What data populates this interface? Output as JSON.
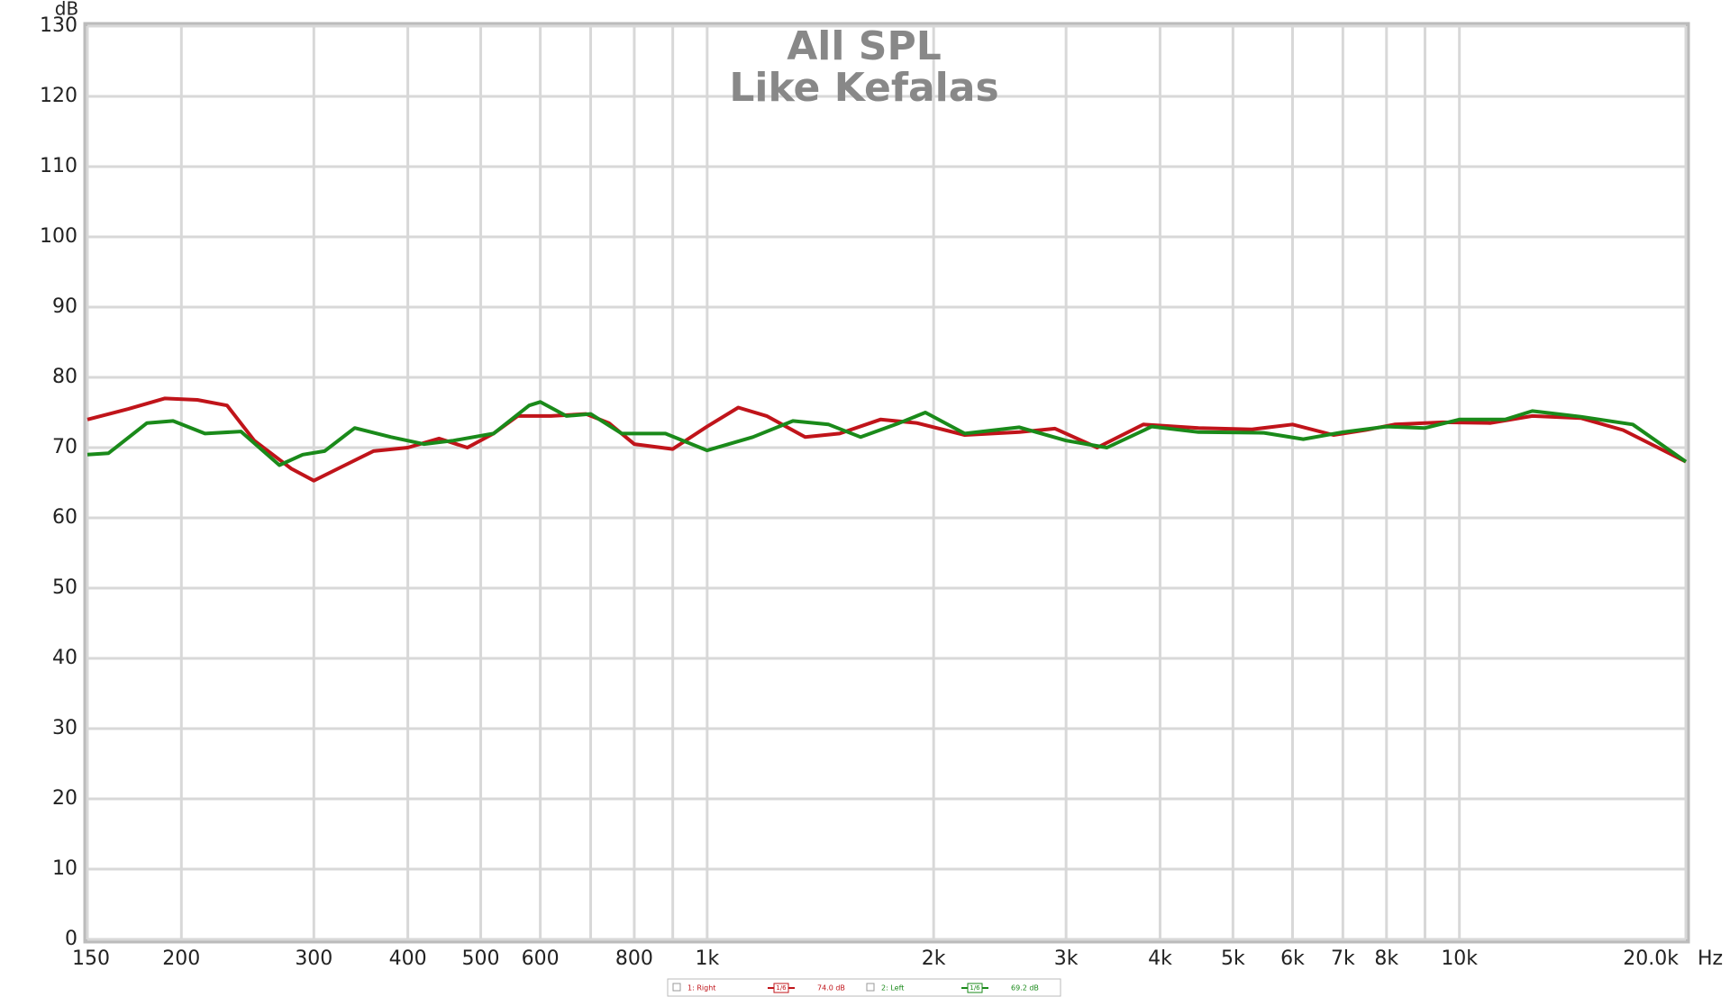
{
  "chart_data": {
    "type": "line",
    "title": "All SPL",
    "subtitle": "Like Kefalas",
    "y_label": "dB",
    "x_label": "Hz",
    "xscale": "log",
    "grid": true,
    "xlim": [
      150,
      20000
    ],
    "ylim": [
      0,
      130
    ],
    "yticks": [
      0,
      10,
      20,
      30,
      40,
      50,
      60,
      70,
      80,
      90,
      100,
      110,
      120,
      130
    ],
    "xticks": [
      150,
      200,
      300,
      400,
      500,
      600,
      800,
      {
        "value": 1000,
        "label": "1k"
      },
      {
        "value": 2000,
        "label": "2k"
      },
      {
        "value": 3000,
        "label": "3k"
      },
      {
        "value": 4000,
        "label": "4k"
      },
      {
        "value": 5000,
        "label": "5k"
      },
      {
        "value": 6000,
        "label": "6k"
      },
      {
        "value": 7000,
        "label": "7k"
      },
      {
        "value": 8000,
        "label": "8k"
      },
      {
        "value": 10000,
        "label": "10k"
      },
      {
        "value": 20000,
        "label": "20.0k"
      }
    ],
    "xgrid_minor": [
      700,
      900,
      9000
    ],
    "series": [
      {
        "name": "1: Right",
        "color": "#c0141a",
        "smoothing": "1/6",
        "level_label": "74.0 dB",
        "x": [
          150,
          170,
          190,
          210,
          230,
          250,
          280,
          300,
          330,
          360,
          400,
          440,
          480,
          520,
          560,
          620,
          690,
          740,
          800,
          900,
          1000,
          1100,
          1200,
          1350,
          1500,
          1700,
          1900,
          2200,
          2600,
          2900,
          3300,
          3800,
          4500,
          5300,
          6000,
          6800,
          7500,
          8200,
          9500,
          11000,
          12500,
          14500,
          16500,
          20000
        ],
        "values": [
          74,
          75.5,
          77,
          76.8,
          76,
          71,
          67,
          65.3,
          67.5,
          69.5,
          70,
          71.3,
          70,
          72,
          74.5,
          74.5,
          74.8,
          73.5,
          70.5,
          69.8,
          73,
          75.7,
          74.5,
          71.5,
          72,
          74,
          73.5,
          71.8,
          72.2,
          72.7,
          70,
          73.3,
          72.8,
          72.6,
          73.3,
          71.8,
          72.5,
          73.3,
          73.6,
          73.5,
          74.5,
          74.2,
          72.5,
          68
        ]
      },
      {
        "name": "2: Left",
        "color": "#1a8a1a",
        "smoothing": "1/6",
        "level_label": "69.2 dB",
        "x": [
          150,
          160,
          180,
          195,
          215,
          240,
          270,
          290,
          310,
          340,
          380,
          420,
          460,
          520,
          580,
          600,
          650,
          700,
          770,
          880,
          1000,
          1150,
          1300,
          1450,
          1600,
          1800,
          1950,
          2200,
          2600,
          3000,
          3400,
          3900,
          4500,
          5500,
          6200,
          7000,
          8000,
          9000,
          10000,
          11500,
          12500,
          14500,
          17000,
          20000
        ],
        "values": [
          69,
          69.2,
          73.5,
          73.8,
          72,
          72.3,
          67.5,
          69,
          69.5,
          72.8,
          71.5,
          70.5,
          71,
          72,
          76,
          76.5,
          74.5,
          74.8,
          72,
          72,
          69.6,
          71.5,
          73.8,
          73.3,
          71.5,
          73.5,
          75,
          72,
          72.9,
          71,
          70,
          73,
          72.2,
          72.1,
          71.2,
          72.2,
          73,
          72.8,
          74,
          74,
          75.2,
          74.4,
          73.3,
          68
        ]
      }
    ]
  }
}
